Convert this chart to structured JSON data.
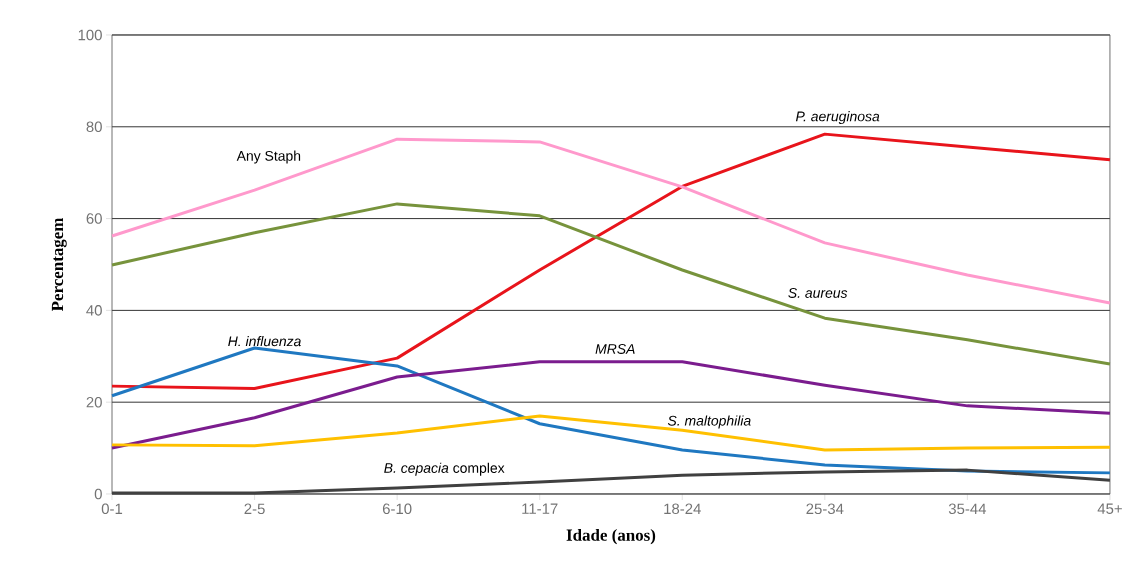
{
  "chart_data": {
    "type": "line",
    "xlabel": "Idade (anos)",
    "ylabel": "Percentagem",
    "categories": [
      "0-1",
      "2-5",
      "6-10",
      "11-17",
      "18-24",
      "25-34",
      "35-44",
      "45+"
    ],
    "series": [
      {
        "name": "P. aeruginosa",
        "color": "#e8141b",
        "values": [
          23.5,
          23,
          29.6,
          48.8,
          67,
          78.4,
          75.6,
          72.8
        ]
      },
      {
        "name": "Any Staph",
        "color": "#ff99cc",
        "values": [
          56.2,
          66.2,
          77.3,
          76.7,
          66.9,
          54.7,
          47.7,
          41.6
        ]
      },
      {
        "name": "S. aureus",
        "color": "#77933c",
        "values": [
          49.9,
          56.9,
          63.2,
          60.6,
          48.8,
          38.3,
          33.6,
          28.3
        ]
      },
      {
        "name": "H. influenza",
        "color": "#1f78c1",
        "values": [
          21.4,
          31.8,
          27.9,
          15.3,
          9.6,
          6.3,
          5.0,
          4.6
        ]
      },
      {
        "name": "MRSA",
        "color": "#7b1c8e",
        "values": [
          10,
          16.6,
          25.5,
          28.8,
          28.8,
          23.7,
          19.2,
          17.6
        ]
      },
      {
        "name": "S. maltophilia",
        "color": "#ffc000",
        "values": [
          10.7,
          10.5,
          13.3,
          17,
          13.9,
          9.6,
          10,
          10.2
        ]
      },
      {
        "name": "*B. cepacia* complex",
        "color": "#404040",
        "values": [
          0.2,
          0.2,
          1.3,
          2.6,
          4.1,
          4.8,
          5.2,
          3
        ]
      }
    ],
    "ylim": [
      0,
      100
    ],
    "yticks": [
      0,
      20,
      40,
      60,
      80,
      100
    ],
    "grid": "y",
    "marker": "none",
    "line_style": "solid"
  }
}
